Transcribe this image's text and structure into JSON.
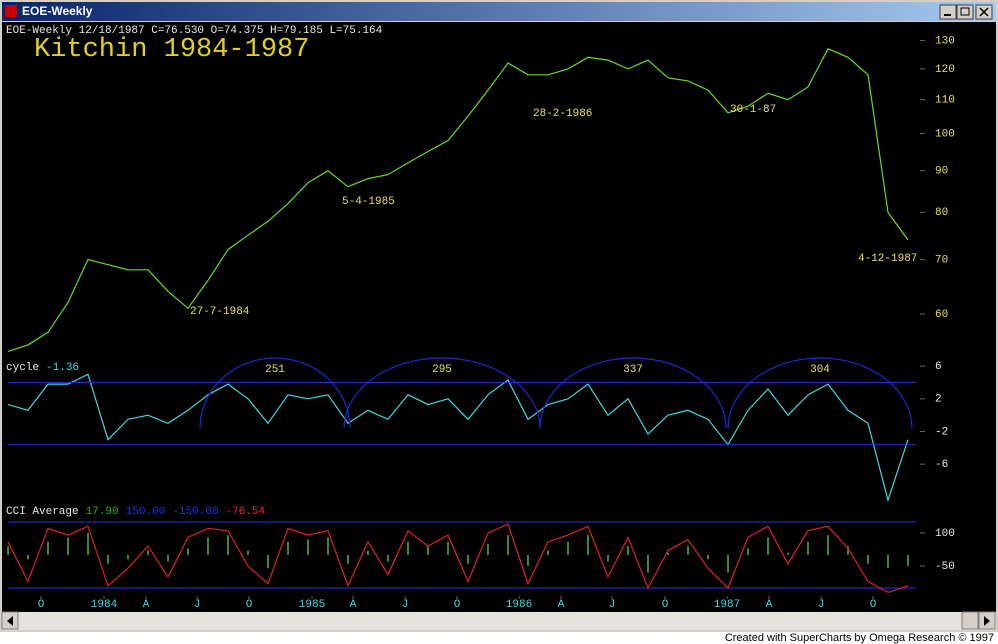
{
  "window": {
    "title": "EOE-Weekly"
  },
  "chart_data": [
    {
      "type": "line",
      "header": "EOE-Weekly  12/18/1987 C=76.530 O=74.375 H=79.185 L=75.164",
      "title": "Kitchin 1984-1987",
      "x": [
        0,
        5,
        10,
        15,
        20,
        25,
        30,
        35,
        40,
        45,
        50,
        55,
        60,
        65,
        70,
        75,
        80,
        85,
        90,
        95,
        100,
        105,
        110,
        115,
        120,
        125,
        130,
        135,
        140,
        145,
        150,
        155,
        160,
        165,
        170,
        175,
        180,
        185,
        190,
        195,
        200,
        205,
        210,
        215,
        220,
        225
      ],
      "xlim": [
        0,
        227
      ],
      "series": [
        {
          "color": "#66dd22",
          "values": [
            54,
            55,
            57,
            62,
            70,
            69,
            68,
            68,
            64,
            61,
            66,
            72,
            75,
            78,
            82,
            87,
            90,
            86,
            88,
            89,
            92,
            95,
            98,
            105,
            113,
            122,
            118,
            118,
            120,
            124,
            123,
            120,
            123,
            117,
            116,
            113,
            106,
            108,
            112,
            110,
            114,
            127,
            124,
            118,
            80,
            74
          ]
        }
      ],
      "log": true,
      "ylim": [
        53,
        137
      ],
      "yticks": [
        60,
        70,
        80,
        90,
        100,
        110,
        120,
        130
      ],
      "annotations": [
        "27-7-1984",
        "5-4-1985",
        "28-2-1986",
        "30-1-87",
        "4-12-1987"
      ]
    },
    {
      "type": "line",
      "series": [
        {
          "name": "cycle",
          "color": "#40d8e0",
          "last_value": -1.36,
          "values": [
            1.3,
            0.6,
            3.8,
            3.8,
            5,
            -3,
            -0.5,
            0,
            -1,
            0.6,
            2.5,
            3.8,
            2,
            -1,
            2.5,
            2,
            2.5,
            -1,
            0.6,
            -0.5,
            2.5,
            1.3,
            2,
            -0.5,
            2.5,
            4.3,
            -0.5,
            1.3,
            2,
            3.8,
            0,
            2,
            -2.3,
            0,
            0.6,
            -0.5,
            -3.6,
            0.6,
            3.2,
            0,
            2.5,
            3.8,
            0.6,
            -1,
            -10.4,
            -3
          ]
        }
      ],
      "bands": [
        4,
        -3.6
      ],
      "arcs": [
        {
          "start": 48,
          "end": 85.5,
          "label": 251
        },
        {
          "start": 84,
          "end": 133,
          "label": 295
        },
        {
          "start": 133,
          "end": 179.5,
          "label": 337
        },
        {
          "start": 180,
          "end": 226,
          "label": 304
        }
      ],
      "ylim": [
        -11,
        7
      ],
      "yticks": [
        6,
        2,
        -2,
        -6
      ]
    },
    {
      "type": "combo",
      "name": "CCI Average",
      "readouts": [
        {
          "value": 17.9,
          "label": "17.90",
          "color": "#22aa22"
        },
        {
          "value": 150,
          "label": "150.00",
          "color": "#2233ee"
        },
        {
          "value": -150,
          "label": "-150.00",
          "color": "#2233ee"
        },
        {
          "value": -76.54,
          "label": "-76.54",
          "color": "#ee2222"
        }
      ],
      "series": [
        {
          "color": "#3a8a2a",
          "values": [
            40,
            -20,
            60,
            80,
            100,
            -40,
            -20,
            20,
            -30,
            30,
            80,
            90,
            20,
            -60,
            60,
            70,
            80,
            -40,
            20,
            -30,
            60,
            40,
            60,
            -40,
            50,
            90,
            -50,
            20,
            60,
            90,
            -30,
            40,
            -80,
            10,
            40,
            -20,
            -80,
            30,
            80,
            10,
            60,
            90,
            40,
            -40,
            -60,
            -50
          ]
        },
        {
          "color": "#dd2222",
          "values": [
            60,
            -120,
            120,
            90,
            130,
            -140,
            -60,
            40,
            -100,
            80,
            120,
            110,
            -50,
            -130,
            120,
            90,
            110,
            -140,
            60,
            -90,
            110,
            40,
            90,
            -120,
            100,
            140,
            -130,
            60,
            90,
            130,
            -100,
            80,
            -150,
            20,
            70,
            -60,
            -150,
            80,
            130,
            -40,
            110,
            130,
            30,
            -120,
            -170,
            -140
          ]
        }
      ],
      "ylim": [
        -182,
        227
      ],
      "yticks": [
        100,
        -50
      ],
      "xticks": [
        {
          "value": 8.25,
          "label": "O"
        },
        {
          "value": 24,
          "label": "1984"
        },
        {
          "value": 34.5,
          "label": "A"
        },
        {
          "value": 47.25,
          "label": "J"
        },
        {
          "value": 60.25,
          "label": "O"
        },
        {
          "value": 76,
          "label": "1985"
        },
        {
          "value": 86.25,
          "label": "A"
        },
        {
          "value": 99.25,
          "label": "J"
        },
        {
          "value": 112.25,
          "label": "O"
        },
        {
          "value": 127.75,
          "label": "1986"
        },
        {
          "value": 138.25,
          "label": "A"
        },
        {
          "value": 151,
          "label": "J"
        },
        {
          "value": 164.25,
          "label": "O"
        },
        {
          "value": 179.75,
          "label": "1987"
        },
        {
          "value": 190.25,
          "label": "A"
        },
        {
          "value": 203.25,
          "label": "J"
        },
        {
          "value": 216.25,
          "label": "O"
        }
      ]
    }
  ],
  "footer": "Created with SuperCharts by Omega Research © 1997"
}
